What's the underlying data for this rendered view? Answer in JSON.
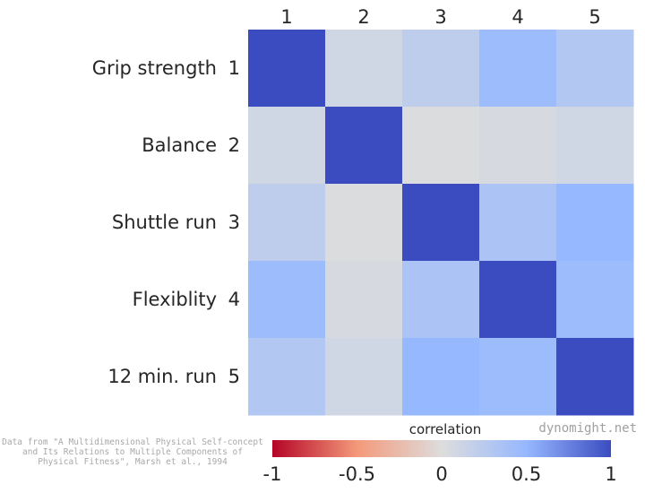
{
  "chart_data": {
    "type": "heatmap",
    "row_names": [
      "Grip strength",
      "Balance",
      "Shuttle run",
      "Flexiblity",
      "12 min. run"
    ],
    "row_indices": [
      "1",
      "2",
      "3",
      "4",
      "5"
    ],
    "col_labels": [
      "1",
      "2",
      "3",
      "4",
      "5"
    ],
    "values": [
      [
        1.0,
        0.1,
        0.22,
        0.45,
        0.3
      ],
      [
        0.1,
        1.0,
        0.02,
        0.05,
        0.1
      ],
      [
        0.22,
        0.02,
        1.0,
        0.35,
        0.5
      ],
      [
        0.45,
        0.05,
        0.35,
        1.0,
        0.45
      ],
      [
        0.3,
        0.1,
        0.5,
        0.45,
        1.0
      ]
    ],
    "vmin": -1,
    "vmax": 1,
    "colormap": "coolwarm_r",
    "colorbar": {
      "label": "correlation",
      "ticks": [
        -1,
        -0.5,
        0,
        0.5,
        1
      ],
      "tick_labels": [
        "-1",
        "-0.5",
        "0",
        "0.5",
        "1"
      ],
      "orientation": "horizontal",
      "placement": "bottom"
    },
    "grid": false
  },
  "credit": "dynomight.net",
  "source_lines": [
    "Data from \"A Multidimensional Physical Self-concept",
    "and Its Relations to Multiple Components of",
    "Physical Fitness\", Marsh et al., 1994"
  ]
}
